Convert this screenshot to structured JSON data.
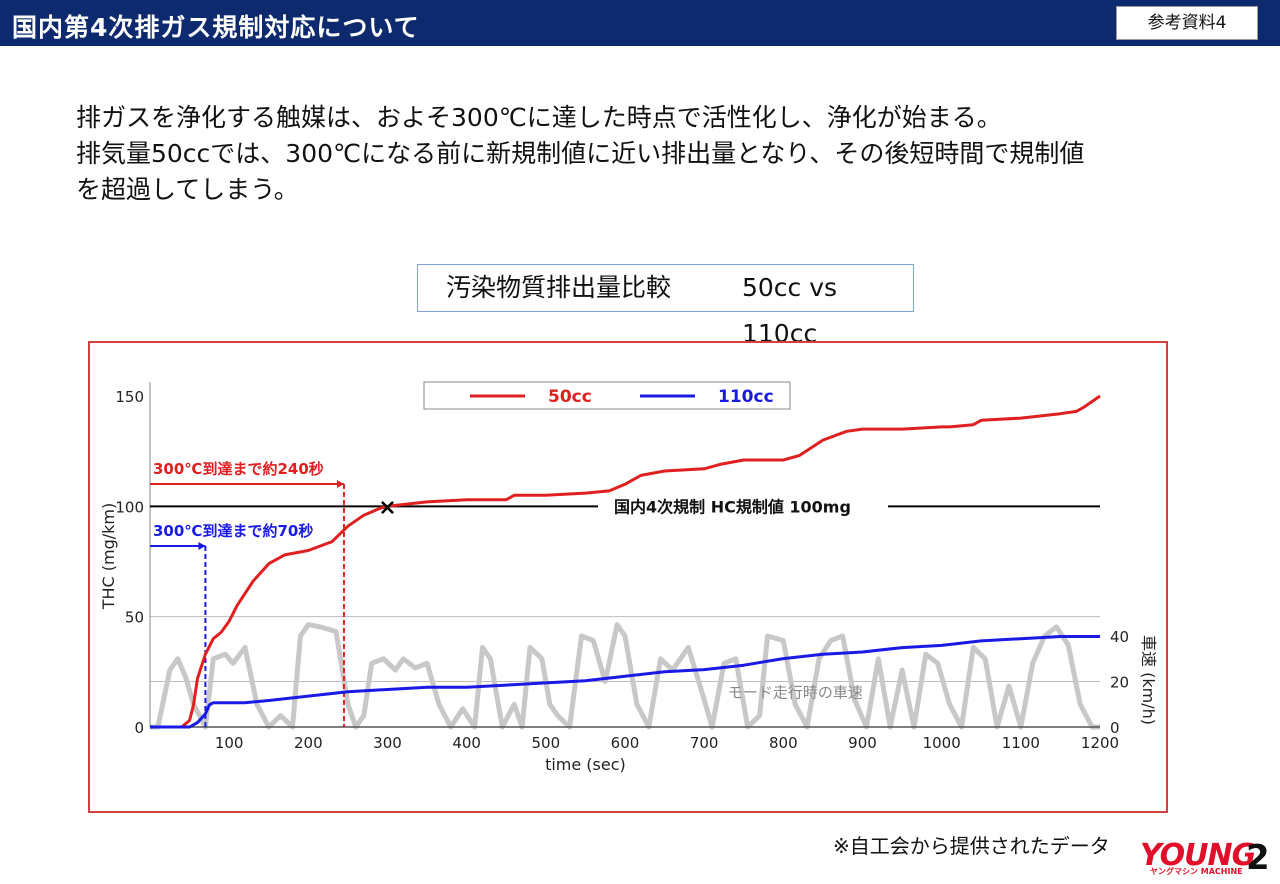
{
  "header": {
    "title": "国内第4次排ガス規制対応について",
    "ref_tag": "参考資料4"
  },
  "intro": {
    "line1": "排ガスを浄化する触媒は、およそ300℃に達した時点で活性化し、浄化が始まる。",
    "line2": "排気量50ccでは、300℃になる前に新規制値に近い排出量となり、その後短時間で規制値",
    "line3": "を超過してしまう。"
  },
  "chart_title": {
    "main": "汚染物質排出量比較",
    "sub": "50cc vs 110cc"
  },
  "footnote": "※自工会から提供されたデータ",
  "logo": "YOUNG",
  "logo_sub": "ヤングマシン MACHINE",
  "page_number": "2",
  "colors": {
    "header_bg": "#0d2a6e",
    "series_50cc": "#e02020",
    "series_110cc": "#1a1ae6",
    "speed_trace": "#c8c8c8",
    "regulation_line": "#000000"
  },
  "chart_data": {
    "type": "line",
    "xlabel": "time (sec)",
    "ylabel": "THC (mg/km)",
    "y2label": "車速 (km/h)",
    "xlim": [
      0,
      1200
    ],
    "ylim": [
      0,
      150
    ],
    "y2lim": [
      0,
      40
    ],
    "x_ticks": [
      100,
      200,
      300,
      400,
      500,
      600,
      700,
      800,
      900,
      1000,
      1100,
      1200
    ],
    "y_ticks": [
      0,
      50,
      100,
      150
    ],
    "y2_ticks": [
      0,
      20,
      40
    ],
    "legend": {
      "position": "top-center",
      "entries": [
        "50cc",
        "110cc"
      ]
    },
    "series": [
      {
        "name": "50cc",
        "color": "#e02020",
        "x": [
          0,
          40,
          50,
          55,
          60,
          70,
          80,
          90,
          100,
          110,
          130,
          150,
          170,
          200,
          230,
          250,
          270,
          290,
          300,
          350,
          400,
          450,
          460,
          500,
          550,
          580,
          600,
          620,
          650,
          700,
          720,
          750,
          800,
          820,
          850,
          880,
          900,
          950,
          1000,
          1010,
          1040,
          1050,
          1100,
          1150,
          1170,
          1180,
          1200
        ],
        "values": [
          0,
          0,
          3,
          10,
          22,
          33,
          40,
          43,
          48,
          55,
          66,
          74,
          78,
          80,
          84,
          91,
          96,
          99,
          100,
          102,
          103,
          103,
          105,
          105,
          106,
          107,
          110,
          114,
          116,
          117,
          119,
          121,
          121,
          123,
          130,
          134,
          135,
          135,
          136,
          136,
          137,
          139,
          140,
          142,
          143,
          145,
          150
        ]
      },
      {
        "name": "110cc",
        "color": "#1a1ae6",
        "x": [
          0,
          30,
          50,
          60,
          70,
          75,
          80,
          90,
          120,
          150,
          200,
          250,
          300,
          350,
          400,
          450,
          500,
          550,
          600,
          650,
          700,
          750,
          800,
          850,
          900,
          950,
          1000,
          1050,
          1100,
          1150,
          1200
        ],
        "values": [
          0,
          0,
          0,
          2,
          6,
          10,
          11,
          11,
          11,
          12,
          14,
          16,
          17,
          18,
          18,
          19,
          20,
          21,
          23,
          25,
          26,
          28,
          31,
          33,
          34,
          36,
          37,
          39,
          40,
          41,
          41
        ]
      }
    ],
    "speed_profile": {
      "name": "モード走行時の車速",
      "x": [
        0,
        10,
        25,
        35,
        45,
        55,
        70,
        80,
        95,
        105,
        120,
        135,
        150,
        165,
        180,
        190,
        200,
        215,
        235,
        250,
        260,
        270,
        280,
        295,
        310,
        320,
        335,
        350,
        365,
        380,
        395,
        410,
        420,
        430,
        445,
        460,
        470,
        480,
        495,
        505,
        515,
        530,
        545,
        560,
        575,
        590,
        600,
        615,
        630,
        645,
        660,
        680,
        700,
        710,
        725,
        740,
        755,
        770,
        780,
        800,
        815,
        830,
        845,
        860,
        875,
        890,
        905,
        920,
        935,
        950,
        965,
        980,
        995,
        1010,
        1025,
        1040,
        1055,
        1070,
        1085,
        1100,
        1115,
        1130,
        1145,
        1160,
        1175,
        1190,
        1200
      ],
      "values": [
        0,
        0,
        25,
        30,
        22,
        10,
        0,
        30,
        32,
        28,
        35,
        10,
        0,
        5,
        0,
        40,
        45,
        44,
        42,
        10,
        0,
        5,
        28,
        30,
        25,
        30,
        26,
        28,
        10,
        0,
        8,
        0,
        35,
        30,
        0,
        10,
        0,
        35,
        30,
        10,
        5,
        0,
        40,
        38,
        20,
        45,
        40,
        10,
        0,
        30,
        25,
        35,
        12,
        0,
        28,
        30,
        0,
        5,
        40,
        38,
        10,
        0,
        30,
        38,
        40,
        12,
        0,
        30,
        0,
        25,
        0,
        32,
        28,
        10,
        0,
        35,
        30,
        0,
        18,
        0,
        28,
        40,
        44,
        36,
        10,
        0,
        0
      ]
    },
    "regulation": {
      "label": "国内4次規制  HC規制値  100mg",
      "y": 100
    },
    "marker": {
      "x": 300,
      "y": 100,
      "symbol": "×"
    },
    "annotations": [
      {
        "label": "300℃到達まで約240秒",
        "x": 245,
        "color": "#e02020"
      },
      {
        "label": "300℃到達まで約70秒",
        "x": 70,
        "color": "#1a1ae6"
      }
    ]
  }
}
